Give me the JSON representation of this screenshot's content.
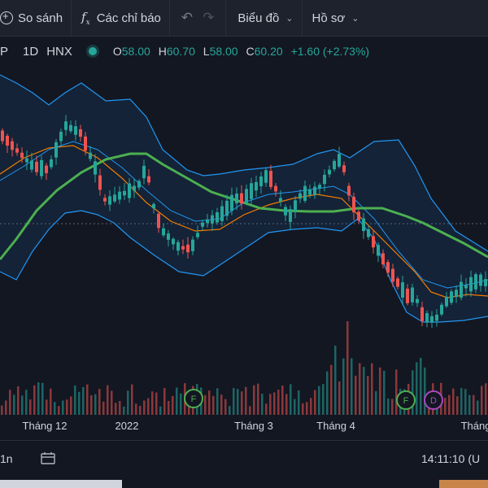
{
  "toolbar": {
    "compare_label": "So sánh",
    "indicators_label": "Các chỉ báo",
    "chart_label": "Biểu đồ",
    "profile_label": "Hồ sơ",
    "undo_icon": "undo-icon",
    "redo_icon": "redo-icon"
  },
  "legend": {
    "symbol": "P",
    "interval": "1D",
    "exchange": "HNX",
    "open_label": "O",
    "open": "58.00",
    "high_label": "H",
    "high": "60.70",
    "low_label": "L",
    "low": "58.00",
    "close_label": "C",
    "close": "60.20",
    "change": "+1.60 (+2.73%)",
    "status_color": "#26a69a"
  },
  "events": [
    {
      "label": "F",
      "color": "#4caf50"
    },
    {
      "label": "F",
      "color": "#4caf50"
    },
    {
      "label": "D",
      "color": "#ab47bc"
    }
  ],
  "axis": {
    "ticks": [
      "Tháng 12",
      "2022",
      "Tháng 3",
      "Tháng 4",
      "Tháng"
    ]
  },
  "bottom": {
    "range_label": "1n",
    "calendar_icon": "calendar-icon",
    "time": "14:11:10 (U"
  },
  "colors": {
    "up": "#26a69a",
    "down": "#ef5350",
    "bollinger": "#2196f3",
    "ma_long": "#4caf50",
    "ma_short": "#f57c00",
    "background": "#131722"
  },
  "chart_data": {
    "type": "candlestick",
    "x_labels": [
      "Tháng 12",
      "2022",
      "Tháng 3",
      "Tháng 4"
    ],
    "last_ohlc": {
      "open": 58.0,
      "high": 60.7,
      "low": 58.0,
      "close": 60.2
    },
    "change": 1.6,
    "change_percent": 2.73,
    "overlays": [
      "Bollinger Bands",
      "Moving Average (orange)",
      "Moving Average (green)"
    ],
    "volume_shown": true
  }
}
